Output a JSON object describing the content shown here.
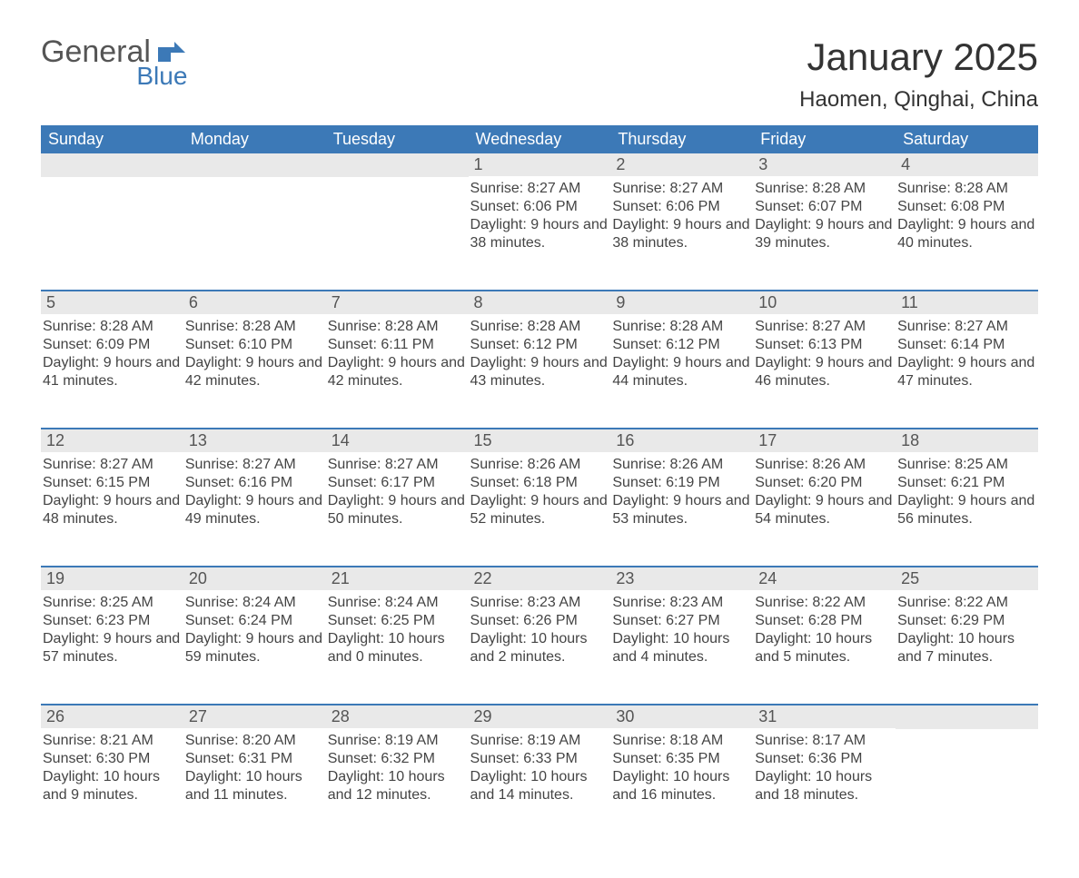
{
  "logo": {
    "text1": "General",
    "text2": "Blue",
    "color_general": "#555555",
    "color_blue": "#3c79b7"
  },
  "title": "January 2025",
  "location": "Haomen, Qinghai, China",
  "colors": {
    "header_bg": "#3c79b7",
    "header_text": "#ffffff",
    "daynum_bg": "#e9e9e9",
    "border": "#3c79b7",
    "body_text": "#444444",
    "page_bg": "#ffffff"
  },
  "weekdays": [
    "Sunday",
    "Monday",
    "Tuesday",
    "Wednesday",
    "Thursday",
    "Friday",
    "Saturday"
  ],
  "weeks": [
    [
      null,
      null,
      null,
      {
        "n": "1",
        "sunrise": "8:27 AM",
        "sunset": "6:06 PM",
        "daylight": "9 hours and 38 minutes."
      },
      {
        "n": "2",
        "sunrise": "8:27 AM",
        "sunset": "6:06 PM",
        "daylight": "9 hours and 38 minutes."
      },
      {
        "n": "3",
        "sunrise": "8:28 AM",
        "sunset": "6:07 PM",
        "daylight": "9 hours and 39 minutes."
      },
      {
        "n": "4",
        "sunrise": "8:28 AM",
        "sunset": "6:08 PM",
        "daylight": "9 hours and 40 minutes."
      }
    ],
    [
      {
        "n": "5",
        "sunrise": "8:28 AM",
        "sunset": "6:09 PM",
        "daylight": "9 hours and 41 minutes."
      },
      {
        "n": "6",
        "sunrise": "8:28 AM",
        "sunset": "6:10 PM",
        "daylight": "9 hours and 42 minutes."
      },
      {
        "n": "7",
        "sunrise": "8:28 AM",
        "sunset": "6:11 PM",
        "daylight": "9 hours and 42 minutes."
      },
      {
        "n": "8",
        "sunrise": "8:28 AM",
        "sunset": "6:12 PM",
        "daylight": "9 hours and 43 minutes."
      },
      {
        "n": "9",
        "sunrise": "8:28 AM",
        "sunset": "6:12 PM",
        "daylight": "9 hours and 44 minutes."
      },
      {
        "n": "10",
        "sunrise": "8:27 AM",
        "sunset": "6:13 PM",
        "daylight": "9 hours and 46 minutes."
      },
      {
        "n": "11",
        "sunrise": "8:27 AM",
        "sunset": "6:14 PM",
        "daylight": "9 hours and 47 minutes."
      }
    ],
    [
      {
        "n": "12",
        "sunrise": "8:27 AM",
        "sunset": "6:15 PM",
        "daylight": "9 hours and 48 minutes."
      },
      {
        "n": "13",
        "sunrise": "8:27 AM",
        "sunset": "6:16 PM",
        "daylight": "9 hours and 49 minutes."
      },
      {
        "n": "14",
        "sunrise": "8:27 AM",
        "sunset": "6:17 PM",
        "daylight": "9 hours and 50 minutes."
      },
      {
        "n": "15",
        "sunrise": "8:26 AM",
        "sunset": "6:18 PM",
        "daylight": "9 hours and 52 minutes."
      },
      {
        "n": "16",
        "sunrise": "8:26 AM",
        "sunset": "6:19 PM",
        "daylight": "9 hours and 53 minutes."
      },
      {
        "n": "17",
        "sunrise": "8:26 AM",
        "sunset": "6:20 PM",
        "daylight": "9 hours and 54 minutes."
      },
      {
        "n": "18",
        "sunrise": "8:25 AM",
        "sunset": "6:21 PM",
        "daylight": "9 hours and 56 minutes."
      }
    ],
    [
      {
        "n": "19",
        "sunrise": "8:25 AM",
        "sunset": "6:23 PM",
        "daylight": "9 hours and 57 minutes."
      },
      {
        "n": "20",
        "sunrise": "8:24 AM",
        "sunset": "6:24 PM",
        "daylight": "9 hours and 59 minutes."
      },
      {
        "n": "21",
        "sunrise": "8:24 AM",
        "sunset": "6:25 PM",
        "daylight": "10 hours and 0 minutes."
      },
      {
        "n": "22",
        "sunrise": "8:23 AM",
        "sunset": "6:26 PM",
        "daylight": "10 hours and 2 minutes."
      },
      {
        "n": "23",
        "sunrise": "8:23 AM",
        "sunset": "6:27 PM",
        "daylight": "10 hours and 4 minutes."
      },
      {
        "n": "24",
        "sunrise": "8:22 AM",
        "sunset": "6:28 PM",
        "daylight": "10 hours and 5 minutes."
      },
      {
        "n": "25",
        "sunrise": "8:22 AM",
        "sunset": "6:29 PM",
        "daylight": "10 hours and 7 minutes."
      }
    ],
    [
      {
        "n": "26",
        "sunrise": "8:21 AM",
        "sunset": "6:30 PM",
        "daylight": "10 hours and 9 minutes."
      },
      {
        "n": "27",
        "sunrise": "8:20 AM",
        "sunset": "6:31 PM",
        "daylight": "10 hours and 11 minutes."
      },
      {
        "n": "28",
        "sunrise": "8:19 AM",
        "sunset": "6:32 PM",
        "daylight": "10 hours and 12 minutes."
      },
      {
        "n": "29",
        "sunrise": "8:19 AM",
        "sunset": "6:33 PM",
        "daylight": "10 hours and 14 minutes."
      },
      {
        "n": "30",
        "sunrise": "8:18 AM",
        "sunset": "6:35 PM",
        "daylight": "10 hours and 16 minutes."
      },
      {
        "n": "31",
        "sunrise": "8:17 AM",
        "sunset": "6:36 PM",
        "daylight": "10 hours and 18 minutes."
      },
      null
    ]
  ],
  "labels": {
    "sunrise": "Sunrise: ",
    "sunset": "Sunset: ",
    "daylight": "Daylight: "
  }
}
